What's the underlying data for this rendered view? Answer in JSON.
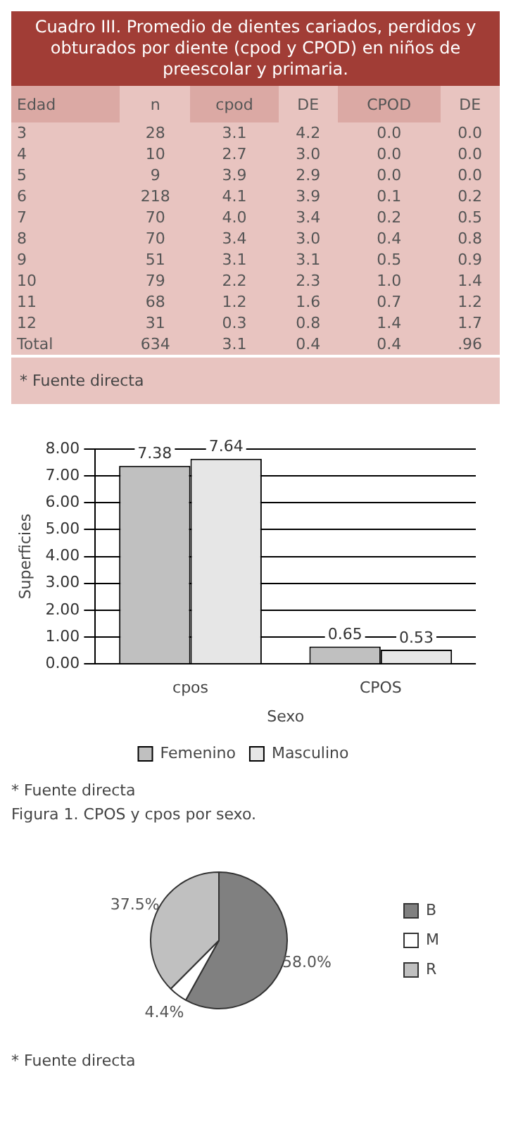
{
  "chart_data": [
    {
      "type": "heatmap",
      "title": "Cuadro III. Promedio de dientes cariados, perdidos y obturados por diente (cpod y CPOD) en niños de preescolar y primaria.",
      "ylabel": "Edad",
      "categories": [
        "n",
        "cpod",
        "DE",
        "CPOD",
        "DE"
      ],
      "y_categories": [
        "3",
        "4",
        "5",
        "6",
        "7",
        "8",
        "9",
        "10",
        "11",
        "12",
        "Total"
      ],
      "cells": [
        [
          28,
          3.1,
          4.2,
          0,
          0
        ],
        [
          10,
          2.7,
          3,
          0,
          0
        ],
        [
          9,
          3.9,
          2.9,
          0,
          0
        ],
        [
          218,
          4.1,
          3.9,
          0.1,
          0.2
        ],
        [
          70,
          4,
          3.4,
          0.2,
          0.5
        ],
        [
          70,
          3.4,
          3,
          0.4,
          0.8
        ],
        [
          51,
          3.1,
          3.1,
          0.5,
          0.9
        ],
        [
          79,
          2.2,
          2.3,
          1,
          1.4
        ],
        [
          68,
          1.2,
          1.6,
          0.7,
          1.2
        ],
        [
          31,
          0.3,
          0.8,
          1.4,
          1.7
        ],
        [
          634,
          3.1,
          0.4,
          0.4,
          0.96
        ]
      ],
      "cell_labels": [
        [
          "28",
          "3.1",
          "4.2",
          "0.0",
          "0.0"
        ],
        [
          "10",
          "2.7",
          "3.0",
          "0.0",
          "0.0"
        ],
        [
          "9",
          "3.9",
          "2.9",
          "0.0",
          "0.0"
        ],
        [
          "218",
          "4.1",
          "3.9",
          "0.1",
          "0.2"
        ],
        [
          "70",
          "4.0",
          "3.4",
          "0.2",
          "0.5"
        ],
        [
          "70",
          "3.4",
          "3.0",
          "0.4",
          "0.8"
        ],
        [
          "51",
          "3.1",
          "3.1",
          "0.5",
          "0.9"
        ],
        [
          "79",
          "2.2",
          "2.3",
          "1.0",
          "1.4"
        ],
        [
          "68",
          "1.2",
          "1.6",
          "0.7",
          "1.2"
        ],
        [
          "31",
          "0.3",
          "0.8",
          "1.4",
          "1.7"
        ],
        [
          "634",
          "3.1",
          "0.4",
          "0.4",
          ".96"
        ]
      ],
      "annotations": [
        "* Fuente directa"
      ]
    },
    {
      "type": "bar",
      "categories": [
        "cpos",
        "CPOS"
      ],
      "xlabel": "Sexo",
      "ylabel": "Superficies",
      "series": [
        {
          "name": "Femenino",
          "color": "#c0c0c0",
          "values": [
            7.38,
            0.65
          ]
        },
        {
          "name": "Masculino",
          "color": "#e6e6e6",
          "values": [
            7.64,
            0.53
          ]
        }
      ],
      "ylim": [
        0,
        8
      ],
      "yticks": [
        {
          "value": 0,
          "label": "0.00"
        },
        {
          "value": 1,
          "label": "1.00"
        },
        {
          "value": 2,
          "label": "2.00"
        },
        {
          "value": 3,
          "label": "3.00"
        },
        {
          "value": 4,
          "label": "4.00"
        },
        {
          "value": 5,
          "label": "5.00"
        },
        {
          "value": 6,
          "label": "6.00"
        },
        {
          "value": 7,
          "label": "7.00"
        },
        {
          "value": 8,
          "label": "8.00"
        }
      ],
      "grid": "y",
      "legend": "bottom",
      "data_labels": true,
      "annotations": [
        "* Fuente directa",
        "Figura 1. CPOS y cpos por sexo."
      ]
    },
    {
      "type": "pie",
      "categories": [
        "B",
        "M",
        "R"
      ],
      "values": [
        58.0,
        4.4,
        37.5
      ],
      "colors": [
        "#808080",
        "#ffffff",
        "#c0c0c0"
      ],
      "value_labels": [
        "58.0%",
        "4.4%",
        "37.5%"
      ],
      "legend": "right",
      "annotations": [
        "* Fuente directa"
      ]
    }
  ]
}
